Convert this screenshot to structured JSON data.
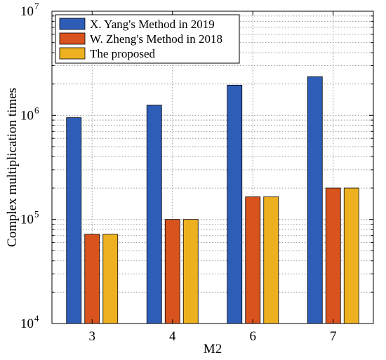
{
  "chart_data": {
    "type": "bar",
    "categories": [
      "3",
      "4",
      "6",
      "7"
    ],
    "series": [
      {
        "name": "X. Yang's Method in 2019",
        "values": [
          950000,
          1250000,
          1950000,
          2350000
        ],
        "color": "#2E5DB8"
      },
      {
        "name": "W. Zheng's Method in 2018",
        "values": [
          72000,
          100000,
          165000,
          200000
        ],
        "color": "#D9531E"
      },
      {
        "name": "The proposed",
        "values": [
          72000,
          100000,
          165000,
          200000
        ],
        "color": "#EDB120"
      }
    ],
    "xlabel": "M2",
    "ylabel": "Complex multiplication times",
    "yscale": "log",
    "ylim": [
      10000,
      10000000
    ],
    "ytick_labels": [
      {
        "value": 10000,
        "base": "10",
        "exp": "4"
      },
      {
        "value": 100000,
        "base": "10",
        "exp": "5"
      },
      {
        "value": 1000000,
        "base": "10",
        "exp": "6"
      },
      {
        "value": 10000000,
        "base": "10",
        "exp": "7"
      }
    ],
    "grid": true,
    "legend_position": "top-left"
  }
}
